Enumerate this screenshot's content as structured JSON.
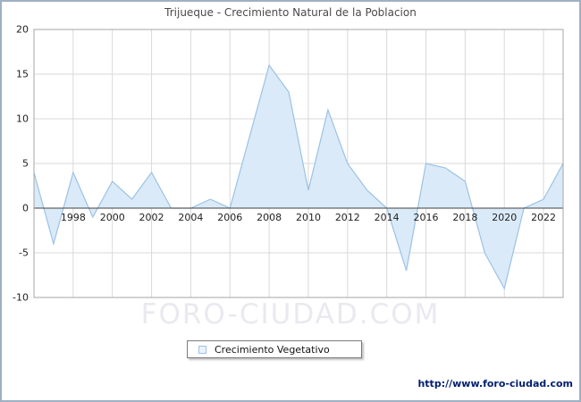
{
  "title": "Trijueque - Crecimiento Natural de la Poblacion",
  "watermark": "FORO-CIUDAD.COM",
  "legend": {
    "label": "Crecimiento Vegetativo"
  },
  "footer_url": "http://www.foro-ciudad.com",
  "colors": {
    "area_fill": "#daeaf8",
    "area_stroke": "#9cc2e5",
    "grid": "#d9d9d9",
    "axis_border": "#a6a6a6",
    "zero_line": "#404040",
    "tick_text": "#222222",
    "title_text": "#4a4a4a"
  },
  "chart_data": {
    "type": "area",
    "title": "Trijueque - Crecimiento Natural de la Poblacion",
    "xlabel": "",
    "ylabel": "",
    "ylim": [
      -10,
      20
    ],
    "yticks": [
      -10,
      -5,
      0,
      5,
      10,
      15,
      20
    ],
    "xticks": [
      1998,
      2000,
      2002,
      2004,
      2006,
      2008,
      2010,
      2012,
      2014,
      2016,
      2018,
      2020,
      2022
    ],
    "grid": true,
    "legend_position": "bottom",
    "x": [
      1996,
      1997,
      1998,
      1999,
      2000,
      2001,
      2002,
      2003,
      2004,
      2005,
      2006,
      2007,
      2008,
      2009,
      2010,
      2011,
      2012,
      2013,
      2014,
      2015,
      2016,
      2017,
      2018,
      2019,
      2020,
      2021,
      2022,
      2023
    ],
    "series": [
      {
        "name": "Crecimiento Vegetativo",
        "values": [
          4,
          -4,
          4,
          -1,
          3,
          1,
          4,
          0,
          0,
          1,
          0,
          8,
          16,
          13,
          2,
          11,
          5,
          2,
          0,
          -7,
          5,
          4.5,
          3,
          -5,
          -9,
          0,
          1,
          5
        ]
      }
    ]
  }
}
